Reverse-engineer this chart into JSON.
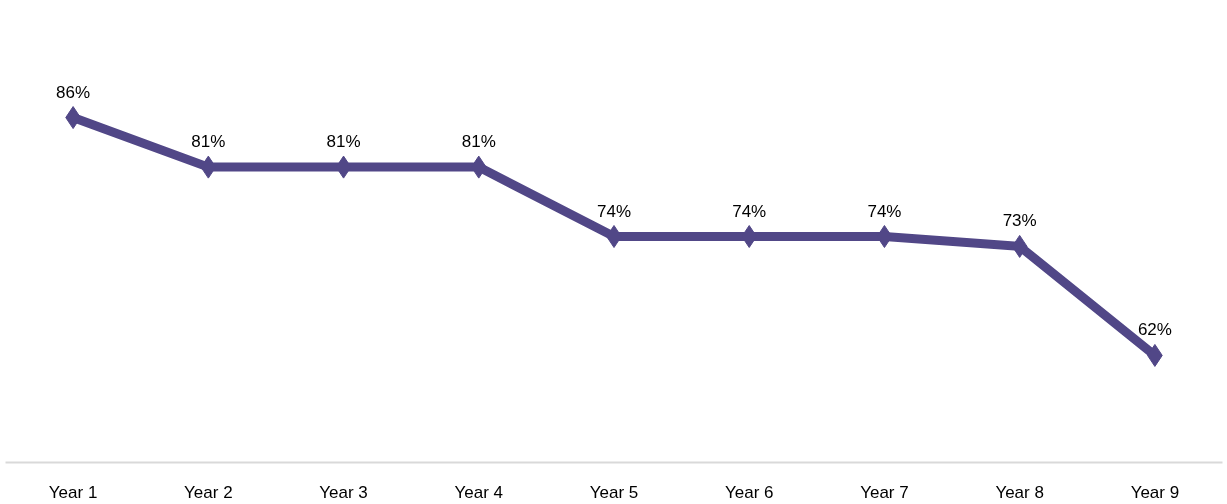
{
  "chart_data": {
    "type": "line",
    "categories": [
      "Year 1",
      "Year 2",
      "Year 3",
      "Year 4",
      "Year 5",
      "Year 6",
      "Year 7",
      "Year 8",
      "Year 9"
    ],
    "series": [
      {
        "color": "#514787",
        "values": [
          86,
          81,
          81,
          81,
          74,
          74,
          74,
          73,
          62
        ],
        "value_labels": [
          "86%",
          "81%",
          "81%",
          "81%",
          "74%",
          "74%",
          "74%",
          "73%",
          "62%"
        ]
      }
    ],
    "tick_labels": "x",
    "grid": false,
    "marker": "diamond",
    "line_style": "solid"
  }
}
